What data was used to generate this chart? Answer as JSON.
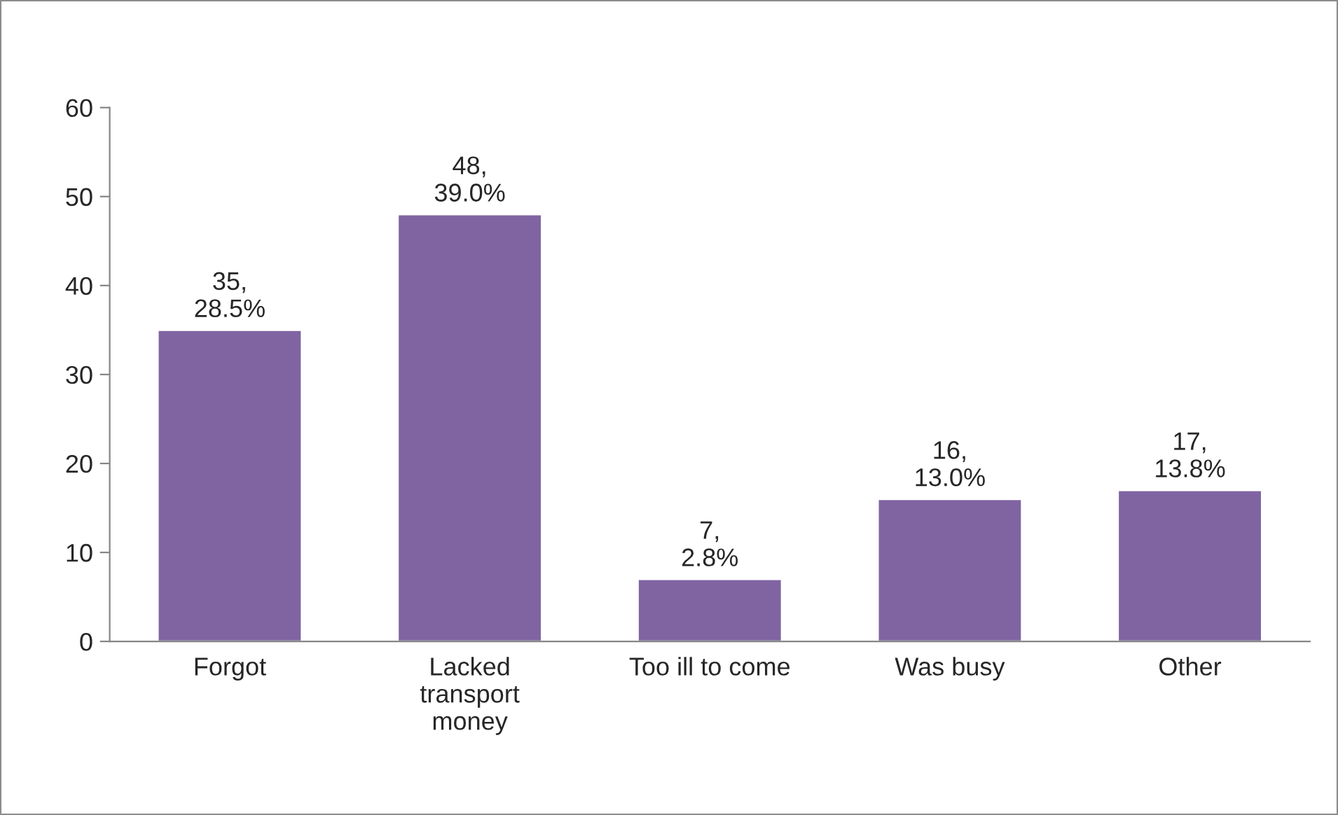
{
  "chart_data": {
    "type": "bar",
    "categories": [
      "Forgot",
      "Lacked\ntransport\nmoney",
      "Too ill to come",
      "Was busy",
      "Other"
    ],
    "series": [
      {
        "color": "#8064a2",
        "values": [
          35,
          48,
          7,
          16,
          17
        ],
        "value_labels": [
          "35,\n28.5%",
          "48,\n39.0%",
          "7,\n2.8%",
          "16,\n13.0%",
          "17,\n13.8%"
        ]
      }
    ],
    "ylim": [
      0,
      60
    ],
    "yticks": [
      0,
      10,
      20,
      30,
      40,
      50,
      60
    ],
    "grid": false,
    "legend": false
  }
}
